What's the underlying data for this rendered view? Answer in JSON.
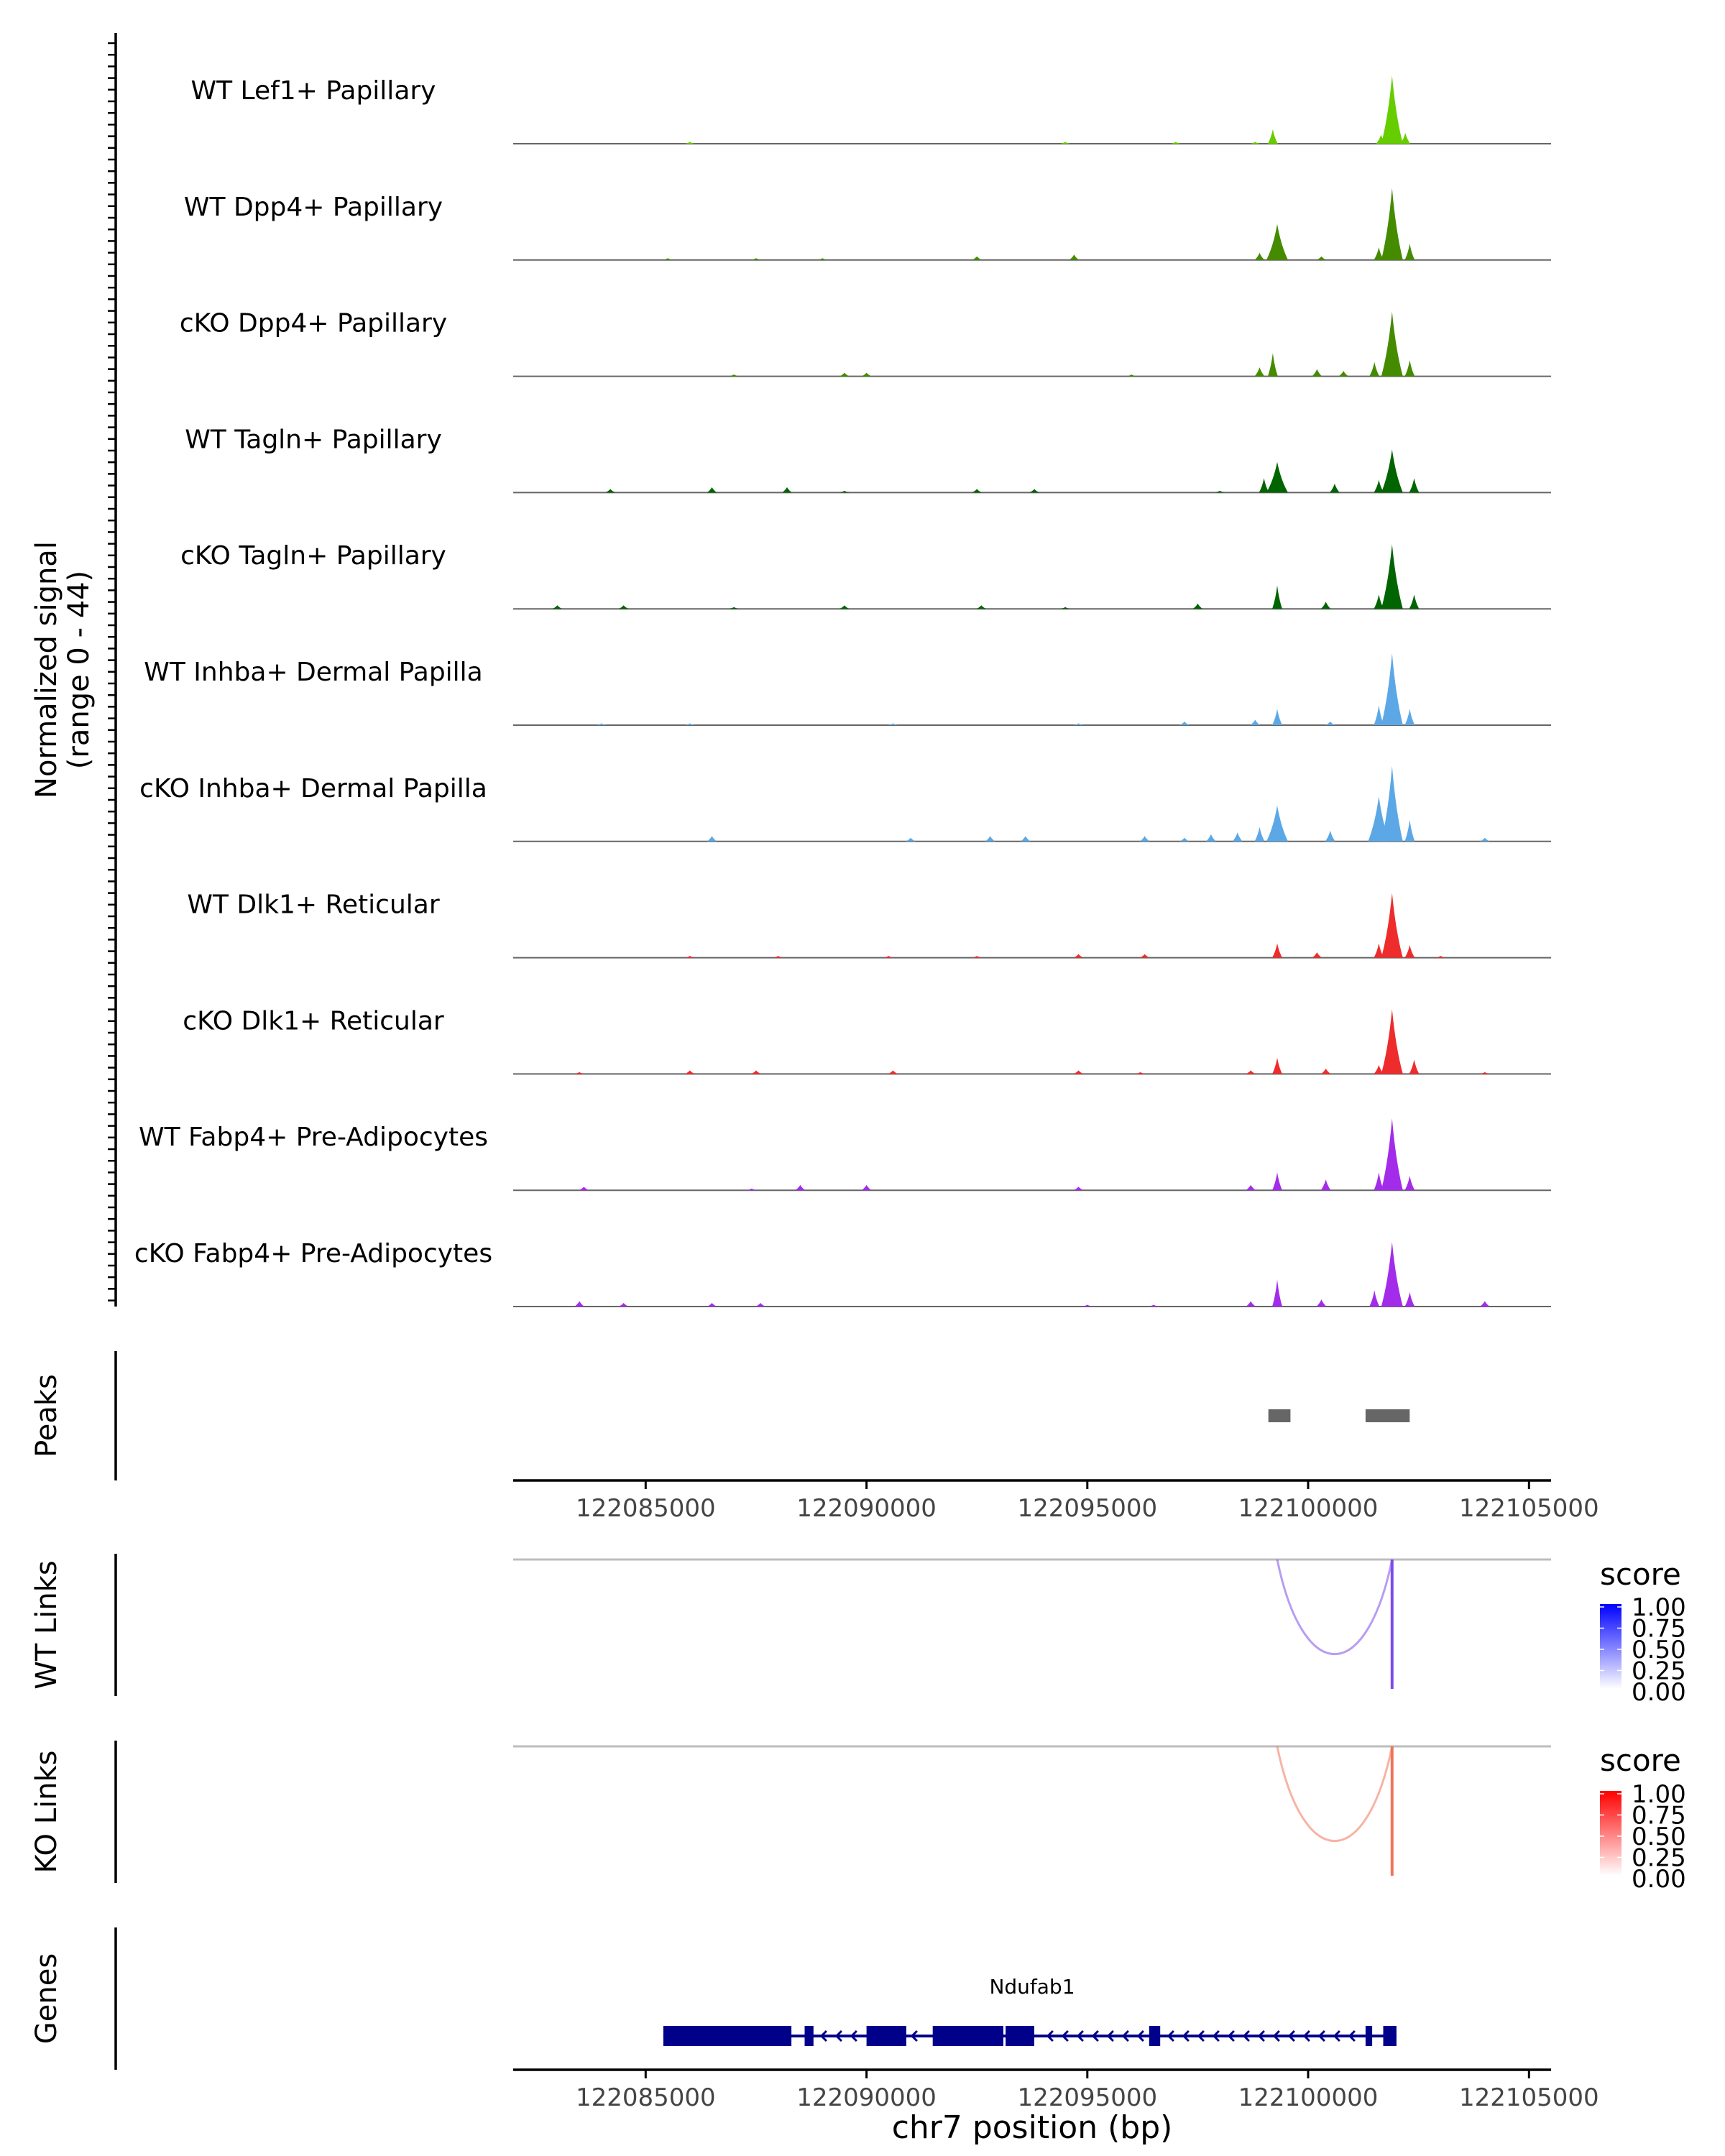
{
  "chart_data": {
    "type": "area",
    "x_unit": "bp",
    "xlim": [
      122082000,
      122105500
    ],
    "xticks": [
      122085000,
      122090000,
      122095000,
      122100000,
      122105000
    ],
    "xtick_labels": [
      "122085000",
      "122090000",
      "122095000",
      "122100000",
      "122105000"
    ],
    "xlabel": "chr7 position (bp)",
    "coverage": {
      "ylabel_line1": "Normalized signal",
      "ylabel_line2": "(range 0 - 44)",
      "ylim": [
        0,
        44
      ],
      "tracks": [
        {
          "name": "WT Lef1+ Papillary",
          "color": "#66cd00",
          "peaks": [
            [
              122099200,
              8
            ],
            [
              122101900,
              38
            ],
            [
              122101650,
              5
            ],
            [
              122102200,
              6
            ],
            [
              122097000,
              1
            ],
            [
              122086000,
              1
            ],
            [
              122094500,
              1
            ],
            [
              122098800,
              1
            ]
          ]
        },
        {
          "name": "WT Dpp4+ Papillary",
          "color": "#458b00",
          "peaks": [
            [
              122099300,
              20
            ],
            [
              122101900,
              40
            ],
            [
              122101600,
              7
            ],
            [
              122102300,
              9
            ],
            [
              122098900,
              4
            ],
            [
              122094700,
              3
            ],
            [
              122092500,
              2
            ],
            [
              122087500,
              1
            ],
            [
              122085500,
              1
            ],
            [
              122089000,
              1
            ],
            [
              122100300,
              2
            ]
          ]
        },
        {
          "name": "cKO Dpp4+ Papillary",
          "color": "#458b00",
          "peaks": [
            [
              122099200,
              13
            ],
            [
              122101900,
              36
            ],
            [
              122101500,
              8
            ],
            [
              122102300,
              9
            ],
            [
              122098900,
              5
            ],
            [
              122100200,
              4
            ],
            [
              122100800,
              3
            ],
            [
              122089500,
              2
            ],
            [
              122087000,
              1
            ],
            [
              122090000,
              2
            ],
            [
              122096000,
              1
            ]
          ]
        },
        {
          "name": "WT Tagln+ Papillary",
          "color": "#006400",
          "peaks": [
            [
              122099300,
              17
            ],
            [
              122101900,
              24
            ],
            [
              122101600,
              7
            ],
            [
              122102400,
              8
            ],
            [
              122099000,
              8
            ],
            [
              122100600,
              5
            ],
            [
              122086500,
              3
            ],
            [
              122088200,
              3
            ],
            [
              122084200,
              2
            ],
            [
              122092500,
              2
            ],
            [
              122093800,
              2
            ],
            [
              122089500,
              1
            ],
            [
              122098000,
              1
            ]
          ]
        },
        {
          "name": "cKO Tagln+ Papillary",
          "color": "#006400",
          "peaks": [
            [
              122099300,
              13
            ],
            [
              122101900,
              36
            ],
            [
              122101600,
              8
            ],
            [
              122102400,
              8
            ],
            [
              122100400,
              4
            ],
            [
              122097500,
              3
            ],
            [
              122083000,
              2
            ],
            [
              122084500,
              2
            ],
            [
              122087000,
              1
            ],
            [
              122089500,
              2
            ],
            [
              122092600,
              2
            ],
            [
              122094500,
              1
            ]
          ]
        },
        {
          "name": "WT Inhba+ Dermal Papilla",
          "color": "#5ca8e6",
          "peaks": [
            [
              122099300,
              9
            ],
            [
              122101900,
              40
            ],
            [
              122101600,
              11
            ],
            [
              122102300,
              9
            ],
            [
              122098800,
              3
            ],
            [
              122100500,
              2
            ],
            [
              122097200,
              2
            ],
            [
              122090600,
              1
            ],
            [
              122086000,
              1
            ],
            [
              122094800,
              1
            ],
            [
              122084000,
              1
            ]
          ]
        },
        {
          "name": "cKO Inhba+ Dermal Papilla",
          "color": "#5ca8e6",
          "peaks": [
            [
              122099300,
              20
            ],
            [
              122101900,
              42
            ],
            [
              122101600,
              25
            ],
            [
              122102300,
              12
            ],
            [
              122098900,
              8
            ],
            [
              122100500,
              6
            ],
            [
              122098400,
              5
            ],
            [
              122097800,
              4
            ],
            [
              122096300,
              3
            ],
            [
              122093600,
              3
            ],
            [
              122092800,
              3
            ],
            [
              122091000,
              2
            ],
            [
              122086500,
              3
            ],
            [
              122097200,
              2
            ],
            [
              122104000,
              2
            ]
          ]
        },
        {
          "name": "WT Dlk1+ Reticular",
          "color": "#ee2c2c",
          "peaks": [
            [
              122099300,
              8
            ],
            [
              122101900,
              36
            ],
            [
              122101600,
              8
            ],
            [
              122102300,
              7
            ],
            [
              122100200,
              3
            ],
            [
              122094800,
              2
            ],
            [
              122096300,
              2
            ],
            [
              122086000,
              1
            ],
            [
              122088000,
              1
            ],
            [
              122090500,
              1
            ],
            [
              122092500,
              1
            ],
            [
              122103000,
              1
            ]
          ]
        },
        {
          "name": "cKO Dlk1+ Reticular",
          "color": "#ee2c2c",
          "peaks": [
            [
              122099300,
              9
            ],
            [
              122101900,
              36
            ],
            [
              122101600,
              5
            ],
            [
              122102400,
              8
            ],
            [
              122100400,
              3
            ],
            [
              122098700,
              2
            ],
            [
              122086000,
              2
            ],
            [
              122087500,
              2
            ],
            [
              122090600,
              2
            ],
            [
              122094800,
              2
            ],
            [
              122083500,
              1
            ],
            [
              122096200,
              1
            ],
            [
              122104000,
              1
            ]
          ]
        },
        {
          "name": "WT Fabp4+ Pre-Adipocytes",
          "color": "#a32ceb",
          "peaks": [
            [
              122099300,
              10
            ],
            [
              122101900,
              40
            ],
            [
              122101600,
              10
            ],
            [
              122102300,
              8
            ],
            [
              122100400,
              6
            ],
            [
              122098700,
              3
            ],
            [
              122088500,
              3
            ],
            [
              122090000,
              3
            ],
            [
              122083600,
              2
            ],
            [
              122094800,
              2
            ],
            [
              122087400,
              1
            ]
          ]
        },
        {
          "name": "cKO Fabp4+ Pre-Adipocytes",
          "color": "#a32ceb",
          "peaks": [
            [
              122099300,
              15
            ],
            [
              122101900,
              36
            ],
            [
              122101500,
              9
            ],
            [
              122102300,
              8
            ],
            [
              122100300,
              4
            ],
            [
              122098700,
              3
            ],
            [
              122083500,
              3
            ],
            [
              122084500,
              2
            ],
            [
              122086500,
              2
            ],
            [
              122087600,
              2
            ],
            [
              122104000,
              3
            ],
            [
              122095000,
              1
            ],
            [
              122096500,
              1
            ]
          ]
        }
      ]
    },
    "peaks_track": {
      "ylabel": "Peaks",
      "regions": [
        [
          122099100,
          122099600
        ],
        [
          122101300,
          122102300
        ]
      ]
    },
    "links": [
      {
        "ylabel": "WT Links",
        "legend_title": "score",
        "color": "#7c4dea",
        "low_color": "#ffffff",
        "high_color": "#0000ff",
        "start": 122099300,
        "end": 122101900,
        "score": 0.75,
        "legend_ticks": [
          "1.00",
          "0.75",
          "0.50",
          "0.25",
          "0.00"
        ]
      },
      {
        "ylabel": "KO Links",
        "legend_title": "score",
        "color": "#f0745a",
        "low_color": "#ffffff",
        "high_color": "#ff0000",
        "start": 122099300,
        "end": 122101900,
        "score": 0.6,
        "legend_ticks": [
          "1.00",
          "0.75",
          "0.50",
          "0.25",
          "0.00"
        ]
      }
    ],
    "genes": {
      "ylabel": "Genes",
      "gene_name": "Ndufab1",
      "color": "#00008b",
      "start": 122085400,
      "end": 122102000,
      "strand": "-",
      "exons": [
        [
          122085400,
          122088300
        ],
        [
          122088600,
          122088800
        ],
        [
          122090000,
          122090900
        ],
        [
          122091500,
          122093100
        ],
        [
          122093150,
          122093800
        ],
        [
          122096400,
          122096650
        ],
        [
          122101300,
          122101450
        ],
        [
          122101700,
          122102000
        ]
      ]
    }
  }
}
